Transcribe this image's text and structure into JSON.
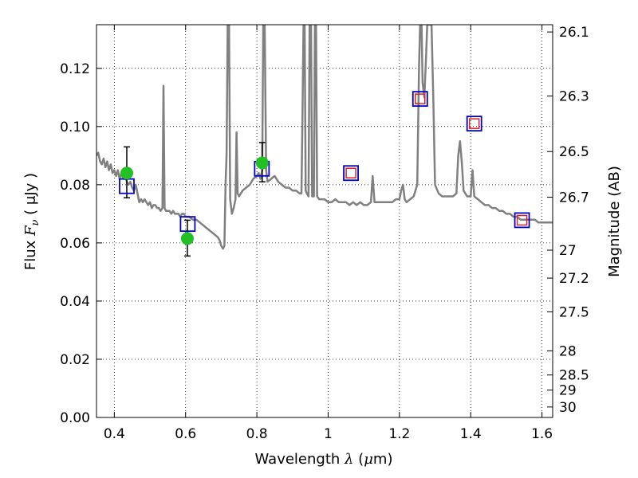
{
  "chart_data": {
    "type": "line",
    "xlabel": {
      "prefix": "Wavelength  ",
      "symbol": "λ",
      "unit_open": " (",
      "unit_mu": "μ",
      "unit_rest": "m)"
    },
    "ylabel": {
      "prefix": "Flux  ",
      "symbol": "F",
      "subscript": "ν",
      "unit": "  ( μJy )"
    },
    "y2label": "Magnitude (AB)",
    "xlim": [
      0.35,
      1.63
    ],
    "ylim": [
      0.0,
      0.135
    ],
    "grid": true,
    "x_ticks": [
      {
        "value": 0.4,
        "label": "0.4"
      },
      {
        "value": 0.6,
        "label": "0.6"
      },
      {
        "value": 0.8,
        "label": "0.8"
      },
      {
        "value": 1.0,
        "label": "1"
      },
      {
        "value": 1.2,
        "label": "1.2"
      },
      {
        "value": 1.4,
        "label": "1.4"
      },
      {
        "value": 1.6,
        "label": "1.6"
      }
    ],
    "y_ticks": [
      {
        "value": 0.0,
        "label": "0.00"
      },
      {
        "value": 0.02,
        "label": "0.02"
      },
      {
        "value": 0.04,
        "label": "0.04"
      },
      {
        "value": 0.06,
        "label": "0.06"
      },
      {
        "value": 0.08,
        "label": "0.08"
      },
      {
        "value": 0.1,
        "label": "0.10"
      },
      {
        "value": 0.12,
        "label": "0.12"
      }
    ],
    "y2_ticks": [
      {
        "flux": 0.1325,
        "label": "26.1"
      },
      {
        "flux": 0.1105,
        "label": "26.3"
      },
      {
        "flux": 0.0914,
        "label": "26.5"
      },
      {
        "flux": 0.0757,
        "label": "26.7"
      },
      {
        "flux": 0.0575,
        "label": "27"
      },
      {
        "flux": 0.0479,
        "label": "27.2"
      },
      {
        "flux": 0.0363,
        "label": "27.5"
      },
      {
        "flux": 0.0229,
        "label": "28"
      },
      {
        "flux": 0.0146,
        "label": "28.5"
      },
      {
        "flux": 0.0094,
        "label": "29"
      },
      {
        "flux": 0.0036,
        "label": "30"
      }
    ],
    "series": [
      {
        "kind": "spectrum",
        "color": "#808080",
        "points": [
          [
            0.35,
            0.09
          ],
          [
            0.355,
            0.091
          ],
          [
            0.36,
            0.088
          ],
          [
            0.365,
            0.087
          ],
          [
            0.37,
            0.089
          ],
          [
            0.375,
            0.086
          ],
          [
            0.38,
            0.088
          ],
          [
            0.385,
            0.085
          ],
          [
            0.39,
            0.087
          ],
          [
            0.395,
            0.084
          ],
          [
            0.4,
            0.085
          ],
          [
            0.405,
            0.083
          ],
          [
            0.41,
            0.085
          ],
          [
            0.415,
            0.082
          ],
          [
            0.42,
            0.084
          ],
          [
            0.425,
            0.082
          ],
          [
            0.43,
            0.083
          ],
          [
            0.435,
            0.081
          ],
          [
            0.44,
            0.08
          ],
          [
            0.445,
            0.081
          ],
          [
            0.45,
            0.079
          ],
          [
            0.455,
            0.078
          ],
          [
            0.46,
            0.08
          ],
          [
            0.465,
            0.077
          ],
          [
            0.47,
            0.074
          ],
          [
            0.475,
            0.075
          ],
          [
            0.48,
            0.074
          ],
          [
            0.485,
            0.075
          ],
          [
            0.49,
            0.074
          ],
          [
            0.495,
            0.073
          ],
          [
            0.5,
            0.074
          ],
          [
            0.505,
            0.072
          ],
          [
            0.51,
            0.073
          ],
          [
            0.515,
            0.073
          ],
          [
            0.52,
            0.072
          ],
          [
            0.525,
            0.072
          ],
          [
            0.53,
            0.071
          ],
          [
            0.535,
            0.072
          ],
          [
            0.538,
            0.114
          ],
          [
            0.541,
            0.072
          ],
          [
            0.545,
            0.071
          ],
          [
            0.55,
            0.071
          ],
          [
            0.555,
            0.071
          ],
          [
            0.56,
            0.07
          ],
          [
            0.565,
            0.071
          ],
          [
            0.57,
            0.07
          ],
          [
            0.575,
            0.07
          ],
          [
            0.58,
            0.07
          ],
          [
            0.585,
            0.069
          ],
          [
            0.59,
            0.07
          ],
          [
            0.595,
            0.07
          ],
          [
            0.6,
            0.069
          ],
          [
            0.61,
            0.069
          ],
          [
            0.62,
            0.068
          ],
          [
            0.63,
            0.068
          ],
          [
            0.64,
            0.067
          ],
          [
            0.65,
            0.066
          ],
          [
            0.66,
            0.065
          ],
          [
            0.67,
            0.064
          ],
          [
            0.68,
            0.063
          ],
          [
            0.69,
            0.062
          ],
          [
            0.695,
            0.061
          ],
          [
            0.7,
            0.059
          ],
          [
            0.705,
            0.058
          ],
          [
            0.709,
            0.059
          ],
          [
            0.712,
            0.08
          ],
          [
            0.715,
            0.09
          ],
          [
            0.718,
            0.135
          ],
          [
            0.722,
            0.135
          ],
          [
            0.725,
            0.075
          ],
          [
            0.73,
            0.07
          ],
          [
            0.735,
            0.072
          ],
          [
            0.74,
            0.075
          ],
          [
            0.743,
            0.098
          ],
          [
            0.746,
            0.077
          ],
          [
            0.75,
            0.076
          ],
          [
            0.76,
            0.078
          ],
          [
            0.77,
            0.079
          ],
          [
            0.78,
            0.08
          ],
          [
            0.79,
            0.082
          ],
          [
            0.8,
            0.083
          ],
          [
            0.805,
            0.084
          ],
          [
            0.81,
            0.082
          ],
          [
            0.815,
            0.085
          ],
          [
            0.818,
            0.135
          ],
          [
            0.822,
            0.135
          ],
          [
            0.826,
            0.085
          ],
          [
            0.83,
            0.081
          ],
          [
            0.84,
            0.082
          ],
          [
            0.85,
            0.083
          ],
          [
            0.86,
            0.081
          ],
          [
            0.87,
            0.08
          ],
          [
            0.88,
            0.079
          ],
          [
            0.89,
            0.079
          ],
          [
            0.9,
            0.078
          ],
          [
            0.91,
            0.078
          ],
          [
            0.92,
            0.077
          ],
          [
            0.925,
            0.077
          ],
          [
            0.928,
            0.104
          ],
          [
            0.931,
            0.135
          ],
          [
            0.934,
            0.135
          ],
          [
            0.937,
            0.078
          ],
          [
            0.94,
            0.077
          ],
          [
            0.945,
            0.076
          ],
          [
            0.948,
            0.135
          ],
          [
            0.952,
            0.135
          ],
          [
            0.955,
            0.076
          ],
          [
            0.96,
            0.076
          ],
          [
            0.963,
            0.135
          ],
          [
            0.966,
            0.135
          ],
          [
            0.969,
            0.076
          ],
          [
            0.975,
            0.075
          ],
          [
            0.98,
            0.075
          ],
          [
            0.99,
            0.075
          ],
          [
            1.0,
            0.074
          ],
          [
            1.01,
            0.074
          ],
          [
            1.02,
            0.075
          ],
          [
            1.03,
            0.074
          ],
          [
            1.04,
            0.074
          ],
          [
            1.05,
            0.074
          ],
          [
            1.06,
            0.073
          ],
          [
            1.07,
            0.074
          ],
          [
            1.08,
            0.073
          ],
          [
            1.09,
            0.074
          ],
          [
            1.1,
            0.073
          ],
          [
            1.11,
            0.073
          ],
          [
            1.12,
            0.074
          ],
          [
            1.125,
            0.083
          ],
          [
            1.13,
            0.074
          ],
          [
            1.14,
            0.074
          ],
          [
            1.15,
            0.074
          ],
          [
            1.16,
            0.074
          ],
          [
            1.17,
            0.074
          ],
          [
            1.18,
            0.074
          ],
          [
            1.19,
            0.075
          ],
          [
            1.2,
            0.075
          ],
          [
            1.205,
            0.078
          ],
          [
            1.21,
            0.08
          ],
          [
            1.215,
            0.075
          ],
          [
            1.22,
            0.074
          ],
          [
            1.23,
            0.075
          ],
          [
            1.24,
            0.076
          ],
          [
            1.25,
            0.08
          ],
          [
            1.255,
            0.12
          ],
          [
            1.258,
            0.135
          ],
          [
            1.262,
            0.135
          ],
          [
            1.265,
            0.115
          ],
          [
            1.27,
            0.11
          ],
          [
            1.275,
            0.125
          ],
          [
            1.278,
            0.135
          ],
          [
            1.29,
            0.135
          ],
          [
            1.295,
            0.11
          ],
          [
            1.3,
            0.08
          ],
          [
            1.31,
            0.077
          ],
          [
            1.32,
            0.076
          ],
          [
            1.33,
            0.076
          ],
          [
            1.34,
            0.076
          ],
          [
            1.35,
            0.076
          ],
          [
            1.36,
            0.077
          ],
          [
            1.365,
            0.09
          ],
          [
            1.37,
            0.095
          ],
          [
            1.375,
            0.088
          ],
          [
            1.38,
            0.078
          ],
          [
            1.39,
            0.076
          ],
          [
            1.4,
            0.076
          ],
          [
            1.405,
            0.085
          ],
          [
            1.41,
            0.076
          ],
          [
            1.42,
            0.075
          ],
          [
            1.43,
            0.074
          ],
          [
            1.44,
            0.073
          ],
          [
            1.45,
            0.073
          ],
          [
            1.46,
            0.072
          ],
          [
            1.47,
            0.072
          ],
          [
            1.48,
            0.071
          ],
          [
            1.49,
            0.071
          ],
          [
            1.5,
            0.07
          ],
          [
            1.51,
            0.07
          ],
          [
            1.52,
            0.069
          ],
          [
            1.53,
            0.069
          ],
          [
            1.54,
            0.068
          ],
          [
            1.55,
            0.068
          ],
          [
            1.56,
            0.068
          ],
          [
            1.57,
            0.068
          ],
          [
            1.58,
            0.068
          ],
          [
            1.59,
            0.067
          ],
          [
            1.6,
            0.067
          ],
          [
            1.61,
            0.067
          ],
          [
            1.62,
            0.067
          ],
          [
            1.63,
            0.067
          ]
        ]
      },
      {
        "kind": "observed",
        "marker": "circle",
        "color": "#22c022",
        "errorbar_color": "#000000",
        "points": [
          {
            "x": 0.435,
            "y": 0.084,
            "yerr_lo": 0.0755,
            "yerr_hi": 0.093
          },
          {
            "x": 0.605,
            "y": 0.0615,
            "yerr_lo": 0.0555,
            "yerr_hi": 0.0678
          },
          {
            "x": 0.815,
            "y": 0.0875,
            "yerr_lo": 0.081,
            "yerr_hi": 0.0945
          }
        ]
      },
      {
        "kind": "model_photometry",
        "marker": "square",
        "color": "#0000cc",
        "points": [
          [
            0.435,
            0.0795
          ],
          [
            0.606,
            0.0665
          ],
          [
            0.814,
            0.0855
          ],
          [
            1.064,
            0.084
          ],
          [
            1.258,
            0.1095
          ],
          [
            1.41,
            0.101
          ],
          [
            1.544,
            0.0678
          ]
        ]
      },
      {
        "kind": "model_photometry_inner",
        "marker": "square",
        "color": "#dd2222",
        "points": [
          [
            1.064,
            0.084
          ],
          [
            1.258,
            0.1095
          ],
          [
            1.41,
            0.101
          ],
          [
            1.544,
            0.0678
          ]
        ]
      }
    ]
  }
}
